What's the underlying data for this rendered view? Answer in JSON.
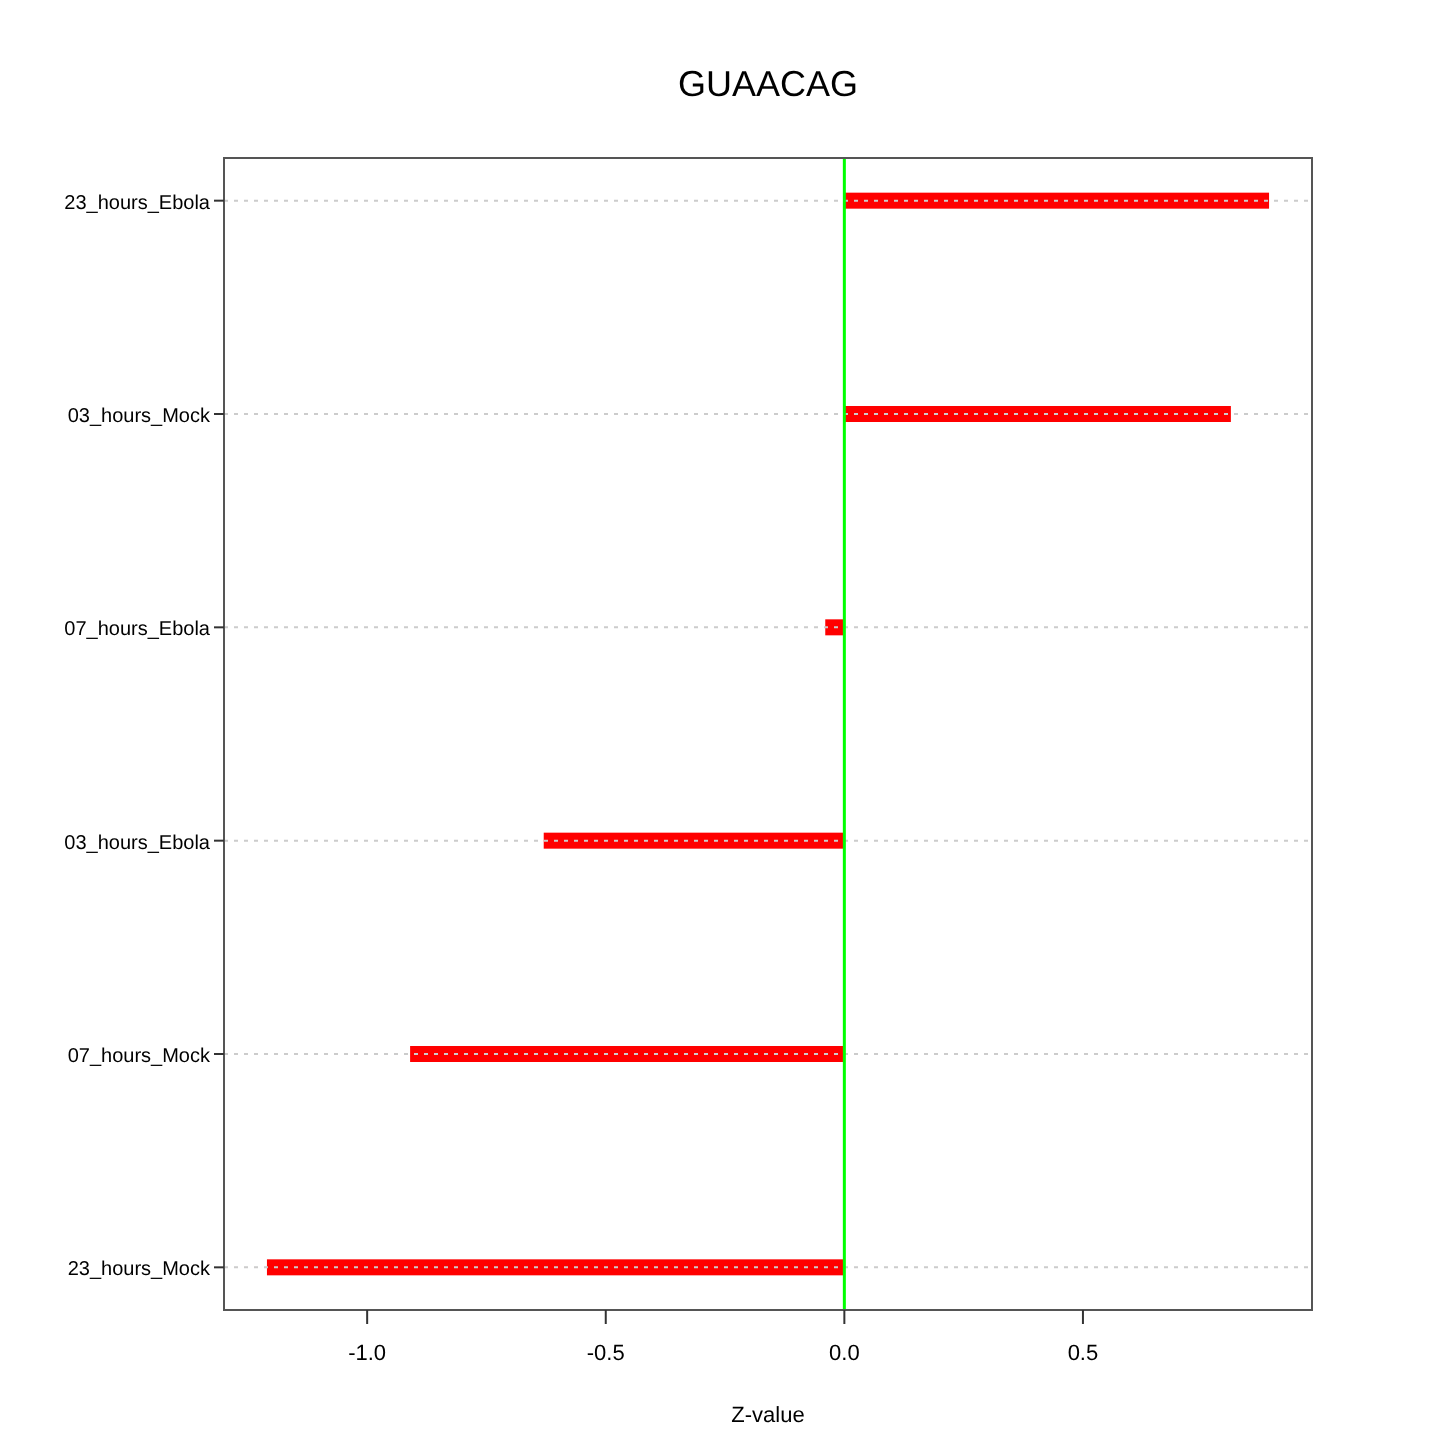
{
  "chart_data": {
    "type": "bar",
    "orientation": "horizontal",
    "title": "GUAACAG",
    "xlabel": "Z-value",
    "categories": [
      "23_hours_Ebola",
      "03_hours_Mock",
      "07_hours_Ebola",
      "03_hours_Ebola",
      "07_hours_Mock",
      "23_hours_Mock"
    ],
    "values": [
      0.89,
      0.81,
      -0.04,
      -0.63,
      -0.91,
      -1.21
    ],
    "color": "#ff0000",
    "xlim": [
      -1.3,
      0.98
    ],
    "xticks": [
      {
        "value": -1,
        "label": "-1.0"
      },
      -0.5,
      {
        "value": 0,
        "label": "0.0"
      },
      0.5
    ],
    "grid": "y",
    "ref_lines": [
      {
        "axis": "x",
        "value": 0,
        "color": "#00ff00"
      }
    ]
  }
}
